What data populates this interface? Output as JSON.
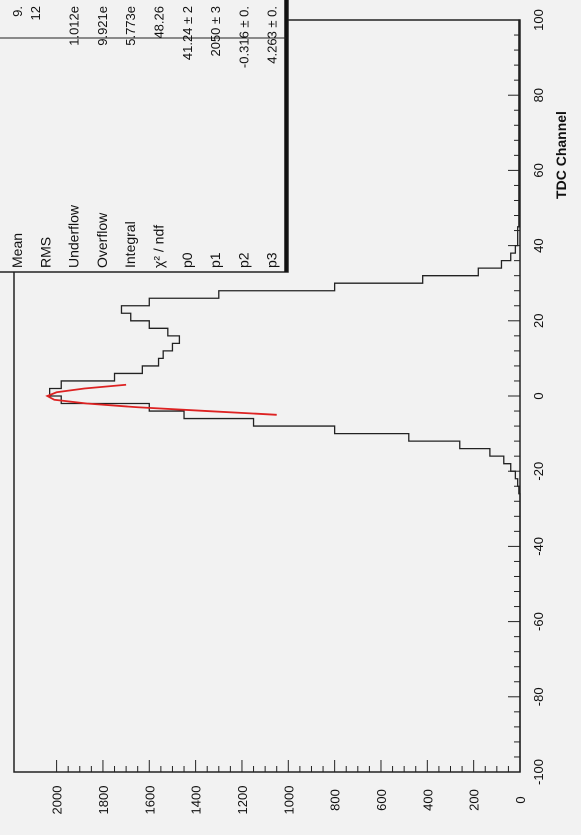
{
  "chart_data": {
    "type": "line",
    "orientation": "rotated-90-clockwise",
    "xlabel": "TDC Channel",
    "ylabel": "",
    "xlim": [
      -100,
      100
    ],
    "ylim": [
      0,
      2100
    ],
    "x_ticks": [
      "-100",
      "-80",
      "-60",
      "-40",
      "-20",
      "0",
      "20",
      "40",
      "60",
      "80",
      "100"
    ],
    "y_ticks": [
      "0",
      "200",
      "400",
      "600",
      "800",
      "1000",
      "1200",
      "1400",
      "1600",
      "1800",
      "2000"
    ],
    "series": [
      {
        "style": "histogram",
        "color": "#222222",
        "x": [
          -100,
          -30,
          -26,
          -24,
          -22,
          -20,
          -18,
          -16,
          -14,
          -12,
          -10,
          -8,
          -6,
          -4,
          -2,
          0,
          2,
          4,
          6,
          8,
          10,
          12,
          14,
          16,
          18,
          20,
          22,
          24,
          26,
          28,
          30,
          32,
          34,
          36,
          38,
          40,
          45,
          100
        ],
        "values": [
          0,
          0,
          5,
          10,
          20,
          40,
          70,
          130,
          260,
          480,
          800,
          1150,
          1450,
          1600,
          1980,
          2030,
          1980,
          1750,
          1630,
          1560,
          1540,
          1500,
          1470,
          1520,
          1600,
          1680,
          1720,
          1600,
          1300,
          800,
          420,
          180,
          80,
          40,
          20,
          10,
          5,
          0
        ]
      },
      {
        "style": "fit",
        "color": "#dd2222",
        "x": [
          -5,
          -4,
          -3,
          -2,
          -1,
          0,
          1,
          2,
          3
        ],
        "values": [
          1050,
          1350,
          1650,
          1870,
          2010,
          2040,
          2000,
          1880,
          1700
        ]
      }
    ],
    "stats_box": {
      "top_values": [
        "9.",
        "12"
      ],
      "rows": [
        {
          "label": "Mean",
          "value": ""
        },
        {
          "label": "RMS",
          "value": ""
        },
        {
          "label": "Underflow",
          "value": "1.012e"
        },
        {
          "label": "Overflow",
          "value": "9.921e"
        },
        {
          "label": "Integral",
          "value": "5.773e"
        },
        {
          "label": "χ² / ndf",
          "value": "48.26"
        },
        {
          "label": "p0",
          "value": "41.24 ± 2"
        },
        {
          "label": "p1",
          "value": "2050 ± 3"
        },
        {
          "label": "p2",
          "value": "-0.316 ± 0."
        },
        {
          "label": "p3",
          "value": "4.263 ± 0."
        }
      ]
    }
  }
}
